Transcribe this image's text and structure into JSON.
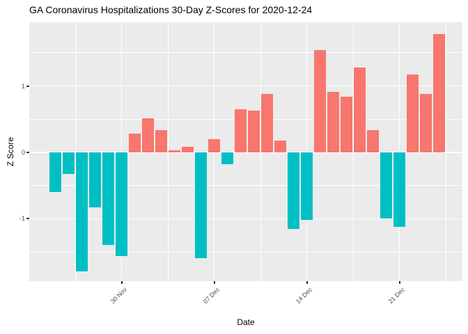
{
  "chart_data": {
    "type": "bar",
    "title": "GA Coronavirus Hospitalizations 30-Day Z-Scores for 2020-12-24",
    "xlabel": "Date",
    "ylabel": "Z Score",
    "ylim": [
      -1.94,
      1.96
    ],
    "grid": true,
    "legend": "none",
    "y_major_ticks": [
      1,
      0,
      -1
    ],
    "y_minor_ticks": [
      1.5,
      0.5,
      -0.5,
      -1.5
    ],
    "x_ticks": [
      {
        "label": "30 Nov",
        "day_index": 5
      },
      {
        "label": "07 Dec",
        "day_index": 12
      },
      {
        "label": "14 Dec",
        "day_index": 19
      },
      {
        "label": "21 Dec",
        "day_index": 26
      }
    ],
    "x_minor_day_indices": [
      1.5,
      8.5,
      15.5,
      22.5,
      29.5
    ],
    "dates": [
      "2020-11-25",
      "2020-11-26",
      "2020-11-27",
      "2020-11-28",
      "2020-11-29",
      "2020-11-30",
      "2020-12-01",
      "2020-12-02",
      "2020-12-03",
      "2020-12-04",
      "2020-12-05",
      "2020-12-06",
      "2020-12-07",
      "2020-12-08",
      "2020-12-09",
      "2020-12-10",
      "2020-12-11",
      "2020-12-12",
      "2020-12-13",
      "2020-12-14",
      "2020-12-15",
      "2020-12-16",
      "2020-12-17",
      "2020-12-18",
      "2020-12-19",
      "2020-12-20",
      "2020-12-21",
      "2020-12-22",
      "2020-12-23",
      "2020-12-24"
    ],
    "values": [
      -0.6,
      -0.33,
      -1.79,
      -0.83,
      -1.4,
      -1.56,
      0.28,
      0.51,
      0.33,
      0.03,
      0.08,
      -1.59,
      0.2,
      -0.18,
      0.65,
      0.63,
      0.88,
      0.18,
      -1.15,
      -1.02,
      1.54,
      0.91,
      0.84,
      1.28,
      0.34,
      -1.0,
      -1.12,
      1.17,
      0.88,
      1.78
    ],
    "colors": {
      "positive_bar": "#F8766D",
      "negative_bar": "#00BFC4",
      "panel_background": "#EBEBEB",
      "gridline": "#FFFFFF",
      "axis_text": "#4D4D4D",
      "tick_mark": "#333333",
      "title_text": "#000000"
    }
  }
}
